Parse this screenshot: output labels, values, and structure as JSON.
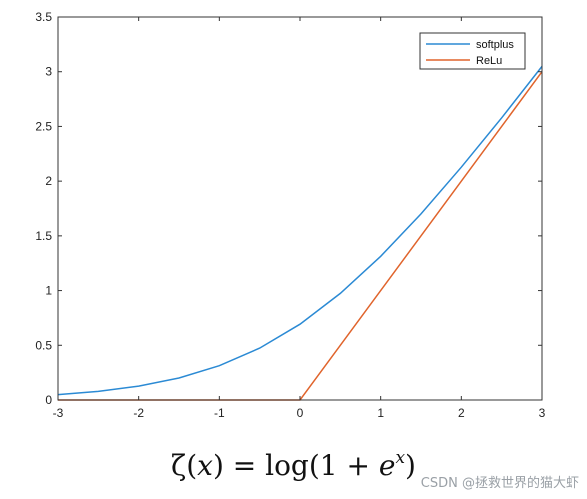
{
  "chart_data": {
    "type": "line",
    "xlim": [
      -3,
      3
    ],
    "ylim": [
      0,
      3.5
    ],
    "x_ticks": [
      -3,
      -2,
      -1,
      0,
      1,
      2,
      3
    ],
    "y_ticks": [
      0,
      0.5,
      1,
      1.5,
      2,
      2.5,
      3,
      3.5
    ],
    "grid": false,
    "legend_position": "top-right",
    "series": [
      {
        "name": "softplus",
        "color": "#2b8ad4",
        "x": [
          -3,
          -2.5,
          -2,
          -1.5,
          -1,
          -0.5,
          0,
          0.5,
          1,
          1.5,
          2,
          2.5,
          3
        ],
        "y": [
          0.049,
          0.079,
          0.127,
          0.201,
          0.313,
          0.474,
          0.693,
          0.974,
          1.313,
          1.701,
          2.127,
          2.579,
          3.049
        ]
      },
      {
        "name": "ReLu",
        "color": "#e0642c",
        "x": [
          -3,
          0,
          3
        ],
        "y": [
          0,
          0,
          3
        ]
      }
    ]
  },
  "formula": {
    "lhs": "ζ(",
    "var": "x",
    "mid": ") = log(1 + ",
    "base": "e",
    "exponent": "x",
    "rhs": ")"
  },
  "watermark": "CSDN @拯救世界的猫大虾"
}
